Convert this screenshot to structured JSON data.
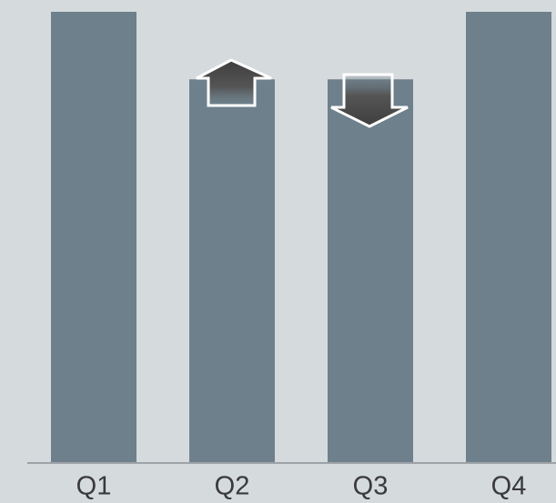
{
  "chart_data": {
    "type": "bar",
    "categories": [
      "Q1",
      "Q2",
      "Q3",
      "Q4"
    ],
    "values": [
      100,
      85,
      85,
      100
    ],
    "color": "#6e808b"
  }
}
